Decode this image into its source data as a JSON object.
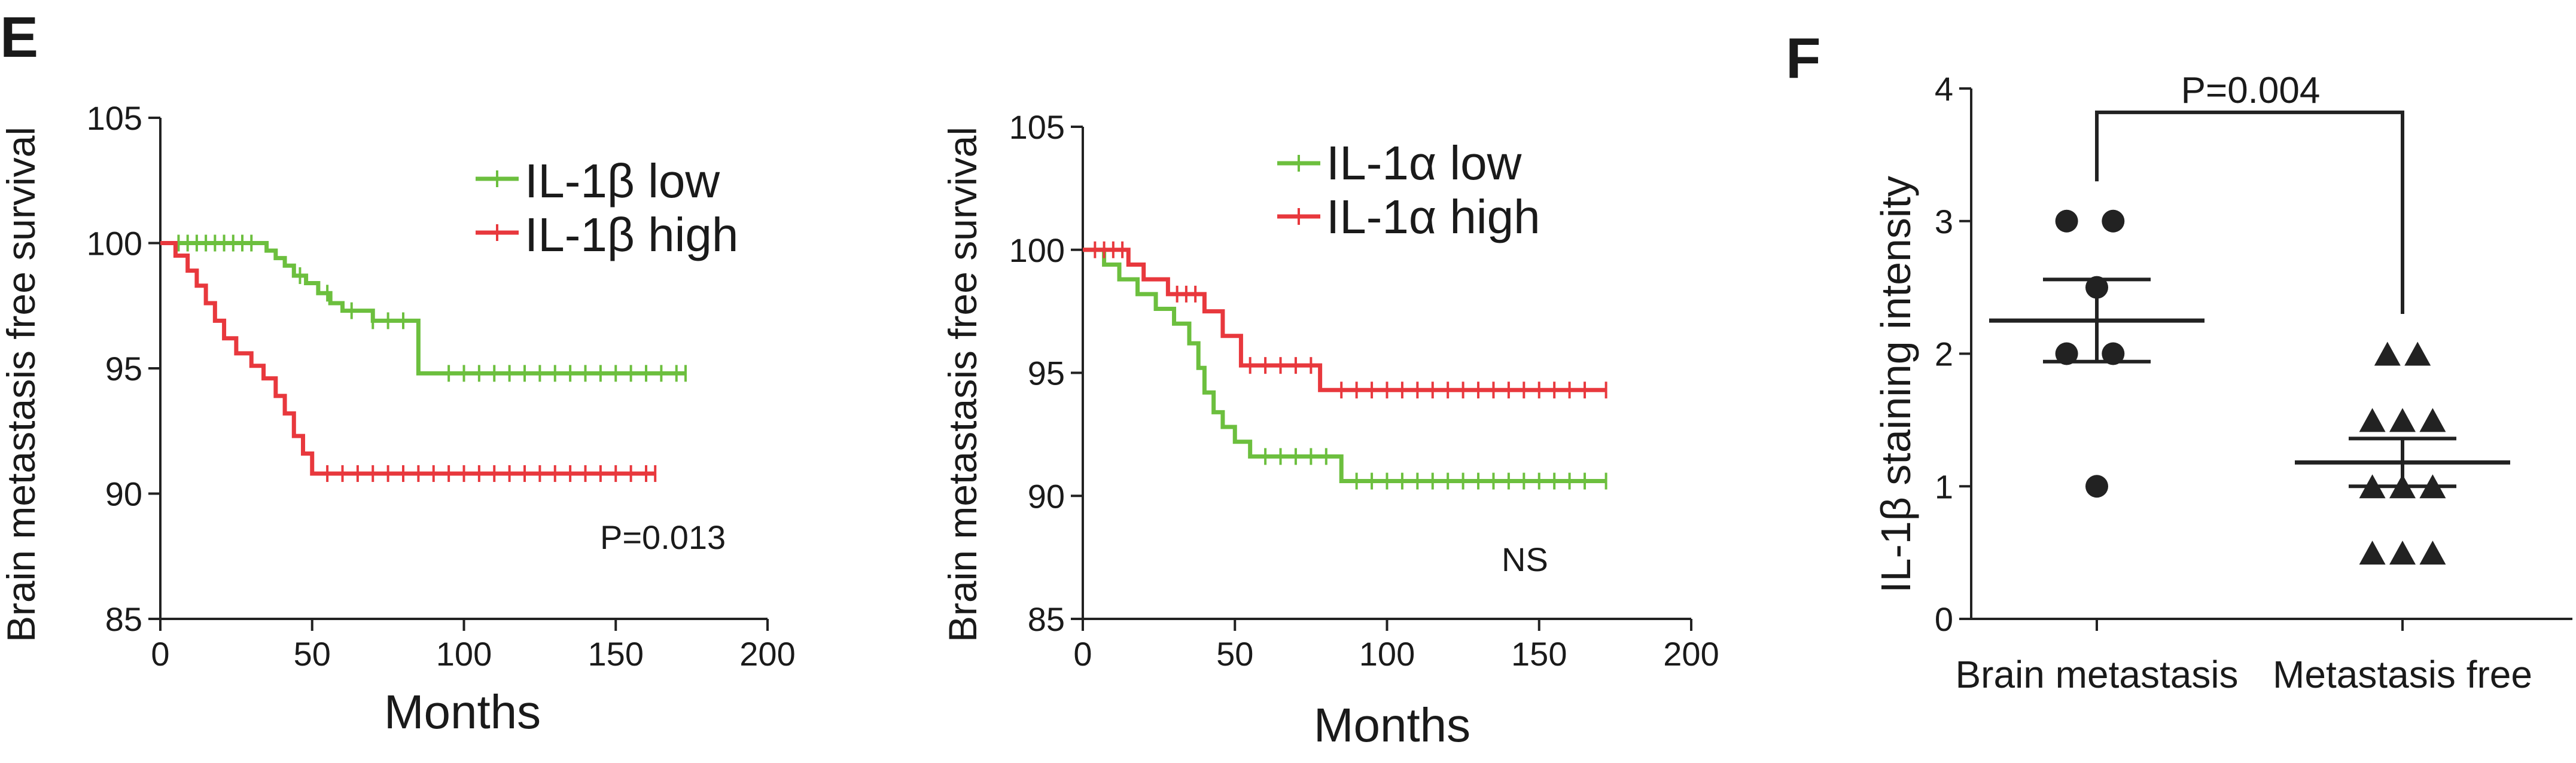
{
  "panels": {
    "E": "E",
    "F": "F"
  },
  "chart_data": [
    {
      "type": "line",
      "ylabel": "Brain metastasis free survival",
      "xlabel": "Months",
      "xlim": [
        0,
        200
      ],
      "ylim": [
        85,
        105
      ],
      "xticks": [
        0,
        50,
        100,
        150,
        200
      ],
      "yticks": [
        85,
        90,
        95,
        100,
        105
      ],
      "grid": false,
      "legend_position": "top-right",
      "annotation": "P=0.013",
      "series": [
        {
          "name": "IL-1β low",
          "color": "#6cbf3e",
          "steps": [
            [
              0,
              100
            ],
            [
              30,
              100
            ],
            [
              35,
              99.7
            ],
            [
              38,
              99.4
            ],
            [
              41,
              99.1
            ],
            [
              44,
              98.7
            ],
            [
              48,
              98.4
            ],
            [
              52,
              98.0
            ],
            [
              56,
              97.6
            ],
            [
              60,
              97.3
            ],
            [
              70,
              96.9
            ],
            [
              80,
              96.9
            ],
            [
              85,
              95.7
            ],
            [
              85,
              94.8
            ],
            [
              173,
              94.8
            ]
          ],
          "censor_x": [
            6,
            9,
            12,
            15,
            18,
            21,
            24,
            27,
            30,
            46,
            55,
            63,
            70,
            75,
            80,
            95,
            100,
            105,
            110,
            115,
            120,
            125,
            130,
            135,
            140,
            145,
            150,
            155,
            160,
            165,
            170,
            173
          ]
        },
        {
          "name": "IL-1β high",
          "color": "#e8383d",
          "steps": [
            [
              0,
              100
            ],
            [
              5,
              99.5
            ],
            [
              9,
              98.9
            ],
            [
              12,
              98.3
            ],
            [
              15,
              97.6
            ],
            [
              18,
              96.9
            ],
            [
              21,
              96.2
            ],
            [
              25,
              95.6
            ],
            [
              30,
              95.1
            ],
            [
              34,
              94.6
            ],
            [
              38,
              93.9
            ],
            [
              41,
              93.2
            ],
            [
              44,
              92.3
            ],
            [
              47,
              91.6
            ],
            [
              50,
              90.8
            ],
            [
              163,
              90.8
            ]
          ],
          "censor_x": [
            55,
            60,
            65,
            70,
            75,
            80,
            85,
            90,
            95,
            100,
            105,
            110,
            115,
            120,
            125,
            130,
            135,
            140,
            145,
            150,
            155,
            160,
            163
          ]
        }
      ]
    },
    {
      "type": "line",
      "ylabel": "Brain metastasis free survival",
      "xlabel": "Months",
      "xlim": [
        0,
        200
      ],
      "ylim": [
        85,
        105
      ],
      "xticks": [
        0,
        50,
        100,
        150,
        200
      ],
      "yticks": [
        85,
        90,
        95,
        100,
        105
      ],
      "grid": false,
      "legend_position": "top-right",
      "annotation": "NS",
      "series": [
        {
          "name": "IL-1α low",
          "color": "#6cbf3e",
          "steps": [
            [
              0,
              100
            ],
            [
              7,
              99.4
            ],
            [
              12,
              98.8
            ],
            [
              18,
              98.2
            ],
            [
              24,
              97.6
            ],
            [
              30,
              97.0
            ],
            [
              35,
              96.2
            ],
            [
              38,
              95.2
            ],
            [
              40,
              94.2
            ],
            [
              43,
              93.4
            ],
            [
              46,
              92.8
            ],
            [
              50,
              92.2
            ],
            [
              55,
              91.6
            ],
            [
              85,
              91.6
            ],
            [
              85,
              90.6
            ],
            [
              172,
              90.6
            ]
          ],
          "censor_x": [
            60,
            65,
            70,
            75,
            80,
            90,
            95,
            100,
            105,
            110,
            115,
            120,
            125,
            130,
            135,
            140,
            145,
            150,
            155,
            160,
            165,
            172
          ]
        },
        {
          "name": "IL-1α high",
          "color": "#e8383d",
          "steps": [
            [
              0,
              100
            ],
            [
              15,
              99.4
            ],
            [
              20,
              98.8
            ],
            [
              28,
              98.2
            ],
            [
              40,
              97.5
            ],
            [
              46,
              96.5
            ],
            [
              52,
              95.3
            ],
            [
              78,
              95.3
            ],
            [
              78,
              94.3
            ],
            [
              172,
              94.3
            ]
          ],
          "censor_x": [
            4,
            7,
            10,
            13,
            31,
            34,
            37,
            55,
            60,
            65,
            70,
            75,
            85,
            90,
            95,
            100,
            105,
            110,
            115,
            120,
            125,
            130,
            135,
            140,
            145,
            150,
            155,
            160,
            165,
            172
          ]
        }
      ]
    },
    {
      "type": "scatter",
      "ylabel": "IL-1β staining intensity",
      "categories": [
        "Brain metastasis",
        "Metastasis free"
      ],
      "ylim": [
        0,
        4
      ],
      "yticks": [
        0,
        1,
        2,
        3,
        4
      ],
      "grid": false,
      "annotation": "P=0.004",
      "groups": [
        {
          "category": "Brain metastasis",
          "marker": "circle",
          "points": [
            [
              -0.24,
              3
            ],
            [
              0.13,
              3
            ],
            [
              0,
              2.5
            ],
            [
              -0.24,
              2
            ],
            [
              0.13,
              2
            ],
            [
              0,
              1
            ]
          ],
          "mean": 2.25,
          "sem_low": 1.94,
          "sem_high": 2.56
        },
        {
          "category": "Metastasis free",
          "marker": "triangle",
          "points": [
            [
              -0.12,
              2
            ],
            [
              0.12,
              2
            ],
            [
              -0.24,
              1.5
            ],
            [
              0,
              1.5
            ],
            [
              0.24,
              1.5
            ],
            [
              -0.24,
              1
            ],
            [
              0,
              1
            ],
            [
              0.24,
              1
            ],
            [
              -0.24,
              0.5
            ],
            [
              0,
              0.5
            ],
            [
              0.24,
              0.5
            ]
          ],
          "mean": 1.18,
          "sem_low": 1.0,
          "sem_high": 1.36
        }
      ]
    }
  ]
}
